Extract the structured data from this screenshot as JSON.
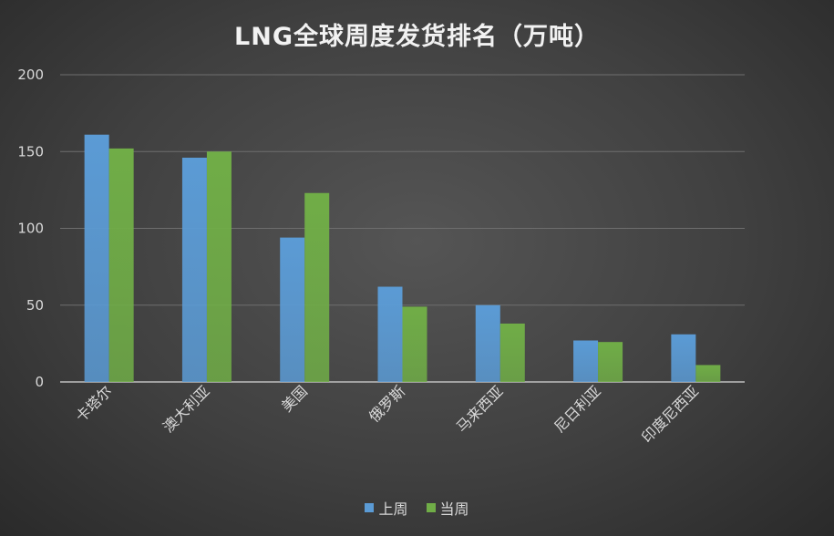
{
  "chart_data": {
    "type": "bar",
    "title": "LNG全球周度发货排名（万吨）",
    "categories": [
      "卡塔尔",
      "澳大利亚",
      "美国",
      "俄罗斯",
      "马来西亚",
      "尼日利亚",
      "印度尼西亚"
    ],
    "series": [
      {
        "name": "上周",
        "color": "#5b9bd5",
        "values": [
          161,
          146,
          94,
          62,
          50,
          27,
          31
        ]
      },
      {
        "name": "当周",
        "color": "#70ad47",
        "values": [
          152,
          150,
          123,
          49,
          38,
          26,
          11
        ]
      }
    ],
    "ylim": [
      0,
      200
    ],
    "yticks": [
      0,
      50,
      100,
      150,
      200
    ],
    "xlabel": "",
    "ylabel": "",
    "grid": true,
    "legend_position": "bottom"
  }
}
